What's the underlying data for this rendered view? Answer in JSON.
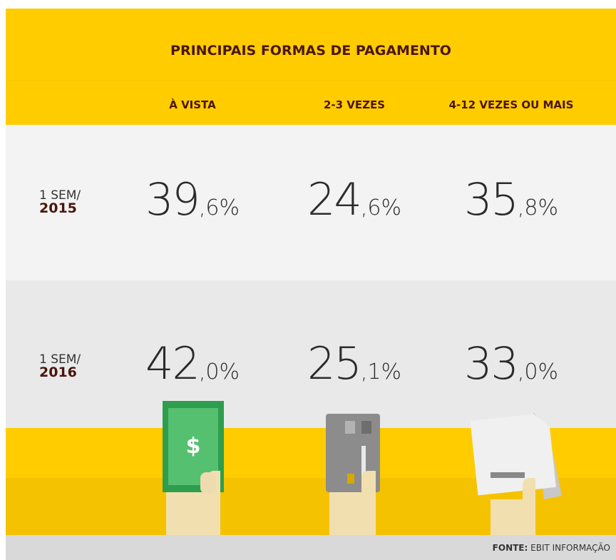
{
  "title": "PRINCIPAIS FORMAS DE PAGAMENTO",
  "columns": [
    "À VISTA",
    "2-3 VEZES",
    "4-12 VEZES OU MAIS"
  ],
  "rows": [
    {
      "label": "1 SEM/",
      "year": "2015",
      "cells": [
        {
          "int": "39",
          "dec": ",6%"
        },
        {
          "int": "24",
          "dec": ",6%"
        },
        {
          "int": "35",
          "dec": ",8%"
        }
      ]
    },
    {
      "label": "1 SEM/",
      "year": "2016",
      "cells": [
        {
          "int": "42",
          "dec": ",0%"
        },
        {
          "int": "25",
          "dec": ",1%"
        },
        {
          "int": "33",
          "dec": ",0%"
        }
      ]
    }
  ],
  "source": {
    "label": "FONTE:",
    "text": "EBIT INFORMAÇÃO"
  }
}
